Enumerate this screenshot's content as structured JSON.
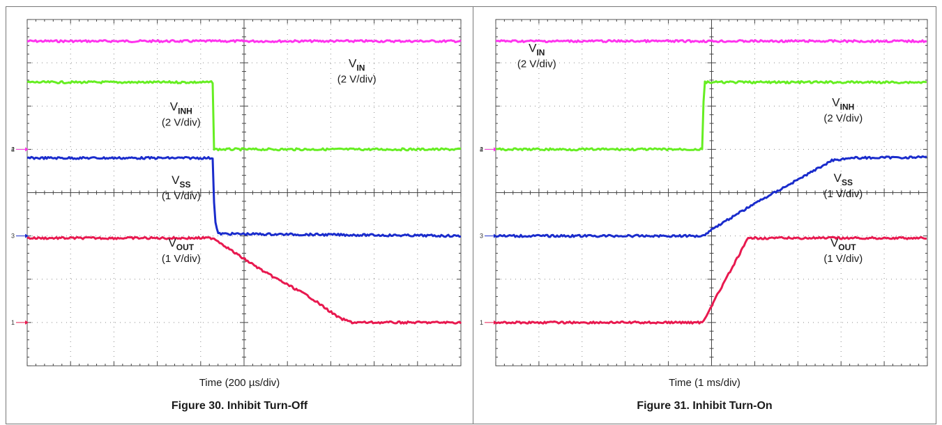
{
  "colors": {
    "vin": "#ff33ee",
    "vinh": "#66ee22",
    "vss": "#1a2ccc",
    "vout": "#e8194f",
    "grid": "#8a8a8a"
  },
  "chart_data": [
    {
      "type": "line",
      "title": "",
      "caption": "Figure 30. Inhibit Turn-Off",
      "xlabel": "Time (200 µs/div)",
      "ylabel": "",
      "x_unit": "div",
      "y_unit": "div",
      "xlim": [
        0,
        10
      ],
      "ylim": [
        0,
        8
      ],
      "grid": true,
      "channel_markers": [
        {
          "label": "2",
          "y": 5.0,
          "color": "#66ee22"
        },
        {
          "label": "4",
          "y": 5.0,
          "color": "#ff33ee"
        },
        {
          "label": "3",
          "y": 3.0,
          "color": "#1a2ccc"
        },
        {
          "label": "1",
          "y": 1.0,
          "color": "#e8194f"
        }
      ],
      "series": [
        {
          "key": "vin",
          "points": [
            [
              0,
              7.5
            ],
            [
              10,
              7.5
            ]
          ],
          "label_main": "V",
          "label_sub": "IN",
          "label_scale": "(2 V/div)",
          "label_pos": [
            7.6,
            6.9
          ]
        },
        {
          "key": "vinh",
          "points": [
            [
              0,
              6.55
            ],
            [
              4.28,
              6.55
            ],
            [
              4.3,
              5.0
            ],
            [
              10,
              5.0
            ]
          ],
          "label_main": "V",
          "label_sub": "INH",
          "label_scale": "(2 V/div)",
          "label_pos": [
            3.55,
            5.9
          ]
        },
        {
          "key": "vss",
          "points": [
            [
              0,
              4.8
            ],
            [
              4.28,
              4.8
            ],
            [
              4.32,
              3.4
            ],
            [
              4.4,
              3.05
            ],
            [
              10,
              3.0
            ]
          ],
          "label_main": "V",
          "label_sub": "SS",
          "label_scale": "(1 V/div)",
          "label_pos": [
            3.55,
            4.2
          ]
        },
        {
          "key": "vout",
          "points": [
            [
              0,
              2.95
            ],
            [
              4.3,
              2.95
            ],
            [
              4.8,
              2.6
            ],
            [
              5.5,
              2.15
            ],
            [
              6.5,
              1.6
            ],
            [
              7.2,
              1.1
            ],
            [
              7.5,
              1.0
            ],
            [
              10,
              1.0
            ]
          ],
          "label_main": "V",
          "label_sub": "OUT",
          "label_scale": "(1 V/div)",
          "label_pos": [
            3.55,
            2.75
          ]
        }
      ]
    },
    {
      "type": "line",
      "title": "",
      "caption": "Figure 31. Inhibit Turn-On",
      "xlabel": "Time (1 ms/div)",
      "ylabel": "",
      "x_unit": "div",
      "y_unit": "div",
      "xlim": [
        0,
        10
      ],
      "ylim": [
        0,
        8
      ],
      "grid": true,
      "channel_markers": [
        {
          "label": "2",
          "y": 5.0,
          "color": "#66ee22"
        },
        {
          "label": "4",
          "y": 5.0,
          "color": "#ff33ee"
        },
        {
          "label": "3",
          "y": 3.0,
          "color": "#1a2ccc"
        },
        {
          "label": "1",
          "y": 1.0,
          "color": "#e8194f"
        }
      ],
      "series": [
        {
          "key": "vin",
          "points": [
            [
              0,
              7.5
            ],
            [
              10,
              7.5
            ]
          ],
          "label_main": "V",
          "label_sub": "IN",
          "label_scale": "(2 V/div)",
          "label_pos": [
            0.95,
            7.25
          ]
        },
        {
          "key": "vinh",
          "points": [
            [
              0,
              5.0
            ],
            [
              4.8,
              5.0
            ],
            [
              4.82,
              6.55
            ],
            [
              10,
              6.55
            ]
          ],
          "label_main": "V",
          "label_sub": "INH",
          "label_scale": "(2 V/div)",
          "label_pos": [
            8.05,
            6.0
          ]
        },
        {
          "key": "vss",
          "points": [
            [
              0,
              3.0
            ],
            [
              4.8,
              3.0
            ],
            [
              5.0,
              3.15
            ],
            [
              6.0,
              3.75
            ],
            [
              7.0,
              4.3
            ],
            [
              7.8,
              4.75
            ],
            [
              8.2,
              4.8
            ],
            [
              10,
              4.82
            ]
          ],
          "label_main": "V",
          "label_sub": "SS",
          "label_scale": "(1 V/div)",
          "label_pos": [
            8.05,
            4.25
          ]
        },
        {
          "key": "vout",
          "points": [
            [
              0,
              1.0
            ],
            [
              4.8,
              1.0
            ],
            [
              4.95,
              1.3
            ],
            [
              5.85,
              2.95
            ],
            [
              10,
              2.95
            ]
          ],
          "label_main": "V",
          "label_sub": "OUT",
          "label_scale": "(1 V/div)",
          "label_pos": [
            8.05,
            2.75
          ]
        }
      ]
    }
  ]
}
